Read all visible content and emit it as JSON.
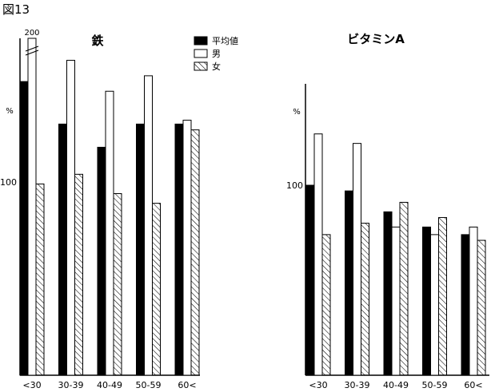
{
  "figure_label": "図13",
  "legend": {
    "items": [
      {
        "label": "平均値",
        "pattern": "solid"
      },
      {
        "label": "男",
        "pattern": "empty"
      },
      {
        "label": "女",
        "pattern": "hatch"
      }
    ]
  },
  "chart_data": [
    {
      "type": "bar",
      "title": "鉄",
      "ylabel": "%",
      "ytick_labels": [
        "100"
      ],
      "ylim": [
        0,
        200
      ],
      "broken_bar_label": "200",
      "categories": [
        "<30",
        "30-39",
        "40-49",
        "50-59",
        "60<"
      ],
      "series": [
        {
          "name": "平均値",
          "values": [
            152,
            130,
            118,
            130,
            130
          ]
        },
        {
          "name": "男",
          "values": [
            200,
            163,
            147,
            155,
            132
          ]
        },
        {
          "name": "女",
          "values": [
            99,
            104,
            94,
            89,
            127
          ]
        }
      ]
    },
    {
      "type": "bar",
      "title": "ビタミンA",
      "ylabel": "%",
      "ytick_labels": [
        "100"
      ],
      "ylim": [
        0,
        200
      ],
      "categories": [
        "<30",
        "30-39",
        "40-49",
        "50-59",
        "60<"
      ],
      "series": [
        {
          "name": "平均値",
          "values": [
            100,
            97,
            86,
            78,
            74
          ]
        },
        {
          "name": "男",
          "values": [
            127,
            122,
            78,
            74,
            78
          ]
        },
        {
          "name": "女",
          "values": [
            74,
            80,
            91,
            83,
            71
          ]
        }
      ]
    }
  ],
  "colors": {
    "solid": "#000000",
    "outline": "#000000",
    "background": "#ffffff"
  }
}
